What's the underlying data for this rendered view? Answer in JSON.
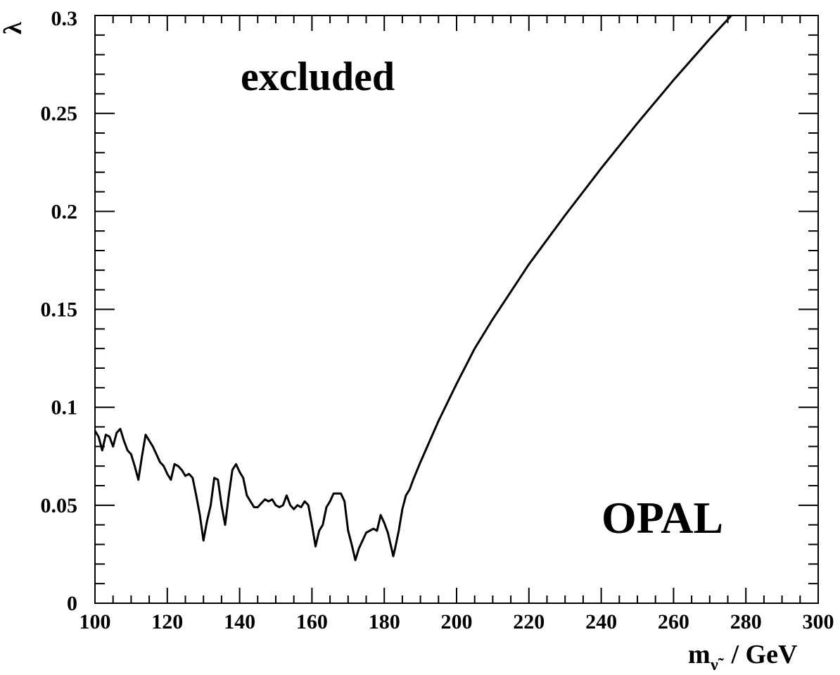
{
  "chart_data": {
    "type": "line",
    "xlabel": "m",
    "xlabel_sub": "ν̃",
    "xlabel_unit": " / GeV",
    "ylabel": "λ",
    "xlim": [
      100,
      300
    ],
    "ylim": [
      0,
      0.3
    ],
    "grid": false,
    "x_ticks": [
      100,
      120,
      140,
      160,
      180,
      200,
      220,
      240,
      260,
      280,
      300
    ],
    "y_ticks": [
      0,
      0.05,
      0.1,
      0.15,
      0.2,
      0.25,
      0.3
    ],
    "y_tick_labels": [
      "0",
      "0.05",
      "0.1",
      "0.15",
      "0.2",
      "0.25",
      "0.3"
    ],
    "annotations": {
      "region_label": "excluded",
      "experiment_label": "OPAL"
    },
    "series": [
      {
        "x": [
          100,
          101,
          102,
          103,
          104,
          105,
          106,
          107,
          108,
          109,
          110,
          111,
          112,
          113,
          114,
          115,
          116,
          117,
          118,
          119,
          120,
          121,
          122,
          123,
          124,
          125,
          126,
          127,
          128,
          129,
          130,
          131,
          132,
          133,
          134,
          135,
          136,
          137,
          138,
          139,
          140,
          141,
          142,
          143,
          144,
          145,
          146,
          147,
          148,
          149,
          150,
          151,
          152,
          153,
          154,
          155,
          156,
          157,
          158,
          159,
          160,
          161,
          162,
          163,
          164,
          165,
          166,
          167,
          168,
          169,
          170,
          171,
          172,
          173,
          174,
          175,
          176,
          177,
          178,
          179,
          180,
          181,
          182,
          182.5,
          183,
          184,
          185,
          186,
          187,
          188,
          190,
          195,
          200,
          205,
          210,
          220,
          230,
          240,
          250,
          260,
          270,
          280,
          290
        ],
        "y": [
          0.088,
          0.085,
          0.078,
          0.086,
          0.085,
          0.08,
          0.087,
          0.089,
          0.083,
          0.078,
          0.076,
          0.07,
          0.063,
          0.075,
          0.086,
          0.083,
          0.08,
          0.076,
          0.072,
          0.07,
          0.066,
          0.063,
          0.071,
          0.07,
          0.068,
          0.065,
          0.066,
          0.064,
          0.055,
          0.045,
          0.032,
          0.042,
          0.05,
          0.064,
          0.063,
          0.05,
          0.04,
          0.055,
          0.068,
          0.071,
          0.067,
          0.064,
          0.055,
          0.052,
          0.049,
          0.049,
          0.051,
          0.053,
          0.052,
          0.053,
          0.05,
          0.049,
          0.05,
          0.055,
          0.05,
          0.048,
          0.05,
          0.049,
          0.052,
          0.05,
          0.04,
          0.029,
          0.037,
          0.04,
          0.049,
          0.052,
          0.056,
          0.056,
          0.056,
          0.052,
          0.037,
          0.03,
          0.022,
          0.028,
          0.032,
          0.036,
          0.037,
          0.038,
          0.037,
          0.045,
          0.041,
          0.036,
          0.028,
          0.024,
          0.028,
          0.037,
          0.048,
          0.055,
          0.058,
          0.063,
          0.072,
          0.093,
          0.112,
          0.13,
          0.145,
          0.173,
          0.198,
          0.222,
          0.245,
          0.267,
          0.288,
          0.308,
          0.3
        ]
      }
    ]
  }
}
